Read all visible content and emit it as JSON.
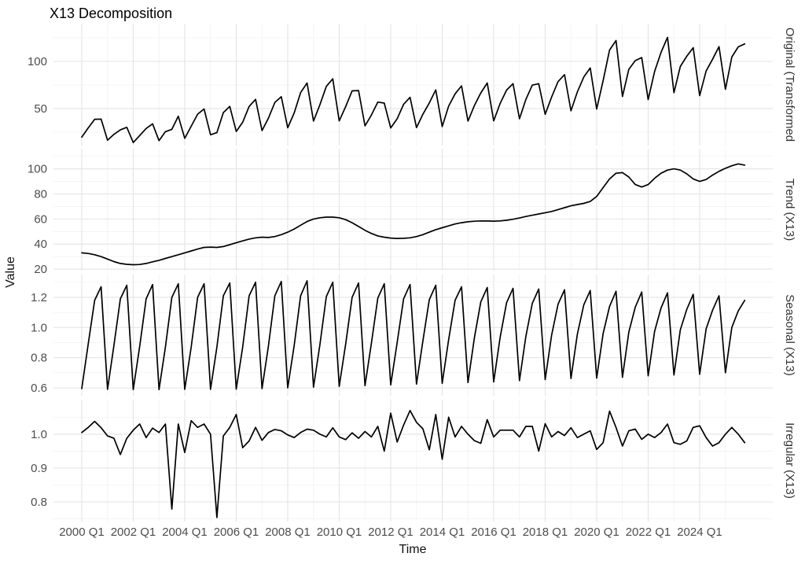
{
  "title": "X13 Decomposition",
  "x_axis": {
    "title": "Time",
    "tick_labels": [
      "2000 Q1",
      "2002 Q1",
      "2004 Q1",
      "2006 Q1",
      "2008 Q1",
      "2010 Q1",
      "2012 Q1",
      "2014 Q1",
      "2016 Q1",
      "2018 Q1",
      "2020 Q1",
      "2022 Q1",
      "2024 Q1"
    ],
    "tick_indices": [
      0,
      8,
      16,
      24,
      32,
      40,
      48,
      56,
      64,
      72,
      80,
      88,
      96
    ],
    "minor_indices": [
      4,
      12,
      20,
      28,
      36,
      44,
      52,
      60,
      68,
      76,
      84,
      92,
      100
    ]
  },
  "y_axis": {
    "title": "Value"
  },
  "chart_data": {
    "type": "line",
    "x_unit": "quarter",
    "x_start": "2000 Q1",
    "x_end": "2025 Q4",
    "n_points": 104,
    "line_color": "#000000",
    "grid_major_color": "#e4e4e4",
    "grid_minor_color": "#f2f2f2",
    "tick_text_color": "#4d4d4d",
    "panels": [
      {
        "name": "Original (Transformed",
        "ylim": [
          10.8,
          140
        ],
        "yticks": [
          {
            "v": 50,
            "label": "50"
          },
          {
            "v": 100,
            "label": "100"
          }
        ],
        "minor": [
          25,
          75,
          125
        ],
        "values": [
          19.7,
          29.5,
          38.6,
          38.8,
          16.4,
          22.6,
          27.4,
          30.1,
          14.0,
          21.4,
          28.9,
          33.8,
          16.0,
          25.5,
          28.0,
          41.9,
          18.4,
          31.2,
          44.1,
          49.6,
          22.2,
          24.5,
          45.7,
          52.2,
          25.7,
          35.5,
          52.2,
          59.7,
          26.6,
          39.7,
          56.4,
          62.6,
          29.6,
          45.3,
          66.9,
          77.1,
          36.7,
          54.0,
          73.5,
          81.5,
          36.9,
          52.1,
          68.7,
          69.1,
          31.6,
          43.1,
          56.8,
          55.8,
          29.5,
          39.1,
          54.5,
          61.9,
          29.8,
          43.9,
          56.0,
          69.7,
          30.9,
          52.6,
          65.6,
          74.1,
          36.7,
          53.1,
          66.6,
          77.1,
          37.0,
          55.4,
          69.6,
          76.3,
          39.1,
          59.6,
          74.8,
          76.3,
          43.9,
          62.2,
          78.6,
          85.9,
          47.6,
          67.6,
          83.4,
          93.0,
          49.5,
          79.6,
          112.0,
          122.1,
          62.7,
          91.6,
          100.8,
          104.0,
          59.5,
          89.3,
          109.6,
          125.4,
          66.8,
          94.6,
          105.4,
          114.5,
          63.7,
          89.7,
          102.2,
          115.6,
          70.4,
          104.6,
          115.4,
          118.5
        ]
      },
      {
        "name": "Trend (X13)",
        "ylim": [
          18.8,
          116.1
        ],
        "yticks": [
          {
            "v": 20,
            "label": "20"
          },
          {
            "v": 40,
            "label": "40"
          },
          {
            "v": 60,
            "label": "60"
          },
          {
            "v": 80,
            "label": "80"
          },
          {
            "v": 100,
            "label": "100"
          }
        ],
        "minor": [
          30,
          50,
          70,
          90,
          110
        ],
        "values": [
          33.0,
          32.5,
          31.5,
          30.0,
          28.0,
          26.0,
          24.5,
          23.8,
          23.5,
          23.7,
          24.5,
          25.8,
          27.0,
          28.5,
          30.0,
          31.5,
          33.0,
          34.5,
          36.0,
          37.3,
          37.6,
          37.3,
          38.0,
          39.5,
          41.0,
          42.5,
          44.0,
          45.0,
          45.5,
          45.2,
          46.0,
          47.5,
          49.5,
          52.0,
          55.0,
          58.0,
          60.0,
          61.0,
          61.5,
          61.5,
          61.0,
          59.5,
          57.0,
          54.0,
          51.0,
          48.5,
          46.5,
          45.5,
          44.8,
          44.5,
          44.6,
          45.0,
          46.0,
          47.5,
          49.5,
          51.5,
          53.0,
          54.5,
          56.0,
          57.0,
          57.8,
          58.2,
          58.5,
          58.4,
          58.3,
          58.5,
          59.0,
          59.8,
          60.8,
          62.0,
          63.0,
          64.0,
          65.0,
          66.0,
          67.5,
          69.0,
          70.5,
          71.5,
          72.5,
          74.0,
          78.0,
          85.0,
          92.0,
          96.5,
          97.0,
          93.5,
          87.5,
          85.5,
          87.5,
          92.5,
          96.5,
          99.0,
          100.0,
          99.0,
          96.0,
          92.0,
          90.0,
          91.5,
          95.0,
          98.0,
          100.5,
          102.5,
          104.0,
          103.0
        ]
      },
      {
        "name": "Seasonal (X13)",
        "ylim": [
          0.548,
          1.351
        ],
        "yticks": [
          {
            "v": 0.6,
            "label": "0.6"
          },
          {
            "v": 0.8,
            "label": "0.8"
          },
          {
            "v": 1.0,
            "label": "1.0"
          },
          {
            "v": 1.2,
            "label": "1.2"
          }
        ],
        "minor": [
          0.7,
          0.9,
          1.1,
          1.3
        ],
        "values": [
          0.595,
          0.89,
          1.18,
          1.27,
          0.59,
          0.88,
          1.19,
          1.28,
          0.588,
          0.875,
          1.19,
          1.285,
          0.588,
          0.87,
          1.2,
          1.29,
          0.59,
          0.87,
          1.2,
          1.29,
          0.59,
          0.87,
          1.21,
          1.295,
          0.592,
          0.87,
          1.21,
          1.3,
          0.595,
          0.875,
          1.21,
          1.305,
          0.6,
          0.88,
          1.21,
          1.31,
          0.605,
          0.885,
          1.205,
          1.3,
          0.61,
          0.89,
          1.2,
          1.295,
          0.615,
          0.895,
          1.195,
          1.29,
          0.62,
          0.9,
          1.19,
          1.285,
          0.625,
          0.91,
          1.185,
          1.28,
          0.63,
          0.92,
          1.18,
          1.27,
          0.635,
          0.93,
          1.17,
          1.265,
          0.64,
          0.935,
          1.165,
          1.26,
          0.648,
          0.94,
          1.16,
          1.255,
          0.655,
          0.95,
          1.155,
          1.25,
          0.662,
          0.955,
          1.15,
          1.245,
          0.665,
          0.96,
          1.14,
          1.24,
          0.67,
          0.97,
          1.135,
          1.235,
          0.68,
          0.975,
          1.13,
          1.23,
          0.685,
          0.985,
          1.12,
          1.22,
          0.69,
          0.99,
          1.115,
          1.21,
          0.7,
          1.0,
          1.11,
          1.18
        ]
      },
      {
        "name": "Irregular (X13)",
        "ylim": [
          0.742,
          1.102
        ],
        "yticks": [
          {
            "v": 0.8,
            "label": "0.8"
          },
          {
            "v": 0.9,
            "label": "0.9"
          },
          {
            "v": 1.0,
            "label": "1.0"
          }
        ],
        "minor": [
          0.75,
          0.85,
          0.95,
          1.05
        ],
        "values": [
          1.005,
          1.02,
          1.038,
          1.019,
          0.995,
          0.988,
          0.94,
          0.988,
          1.012,
          1.03,
          0.99,
          1.018,
          1.005,
          1.03,
          0.779,
          1.03,
          0.946,
          1.04,
          1.02,
          1.03,
          1.0,
          0.754,
          0.995,
          1.02,
          1.058,
          0.96,
          0.98,
          1.02,
          0.982,
          1.005,
          1.014,
          1.01,
          0.998,
          0.99,
          1.005,
          1.015,
          1.012,
          1.0,
          0.992,
          1.019,
          0.992,
          0.984,
          1.004,
          0.988,
          1.008,
          0.992,
          1.023,
          0.95,
          1.062,
          0.977,
          1.027,
          1.07,
          1.035,
          1.016,
          0.954,
          1.058,
          0.926,
          1.05,
          0.992,
          1.023,
          1.0,
          0.981,
          0.973,
          1.043,
          0.992,
          1.012,
          1.012,
          1.012,
          0.992,
          1.023,
          1.023,
          0.95,
          1.031,
          0.992,
          1.008,
          0.996,
          1.019,
          0.99,
          1.0,
          1.01,
          0.955,
          0.975,
          1.068,
          1.02,
          0.965,
          1.01,
          1.015,
          0.985,
          1.0,
          0.99,
          1.005,
          1.03,
          0.975,
          0.97,
          0.98,
          1.02,
          1.025,
          0.99,
          0.965,
          0.975,
          1.0,
          1.02,
          1.0,
          0.975
        ]
      }
    ]
  }
}
